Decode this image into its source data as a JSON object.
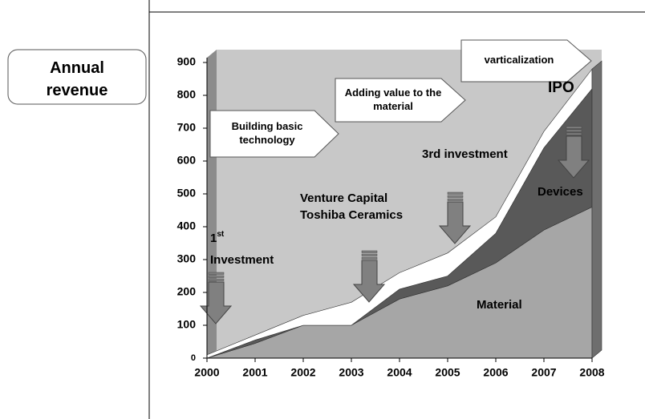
{
  "chart_data": {
    "type": "stacked_area",
    "label": "Annual revenue",
    "categories": [
      "2000",
      "2001",
      "2002",
      "2003",
      "2004",
      "2005",
      "2006",
      "2007",
      "2008"
    ],
    "series": [
      {
        "name": "Material",
        "color": "#a6a6a6",
        "values": [
          0,
          45,
          100,
          100,
          180,
          220,
          290,
          390,
          460
        ]
      },
      {
        "name": "Devices",
        "color": "#595959",
        "values": [
          0,
          10,
          0,
          0,
          30,
          30,
          90,
          250,
          360
        ]
      },
      {
        "color": "#ffffff",
        "values": [
          10,
          15,
          30,
          70,
          50,
          70,
          50,
          50,
          60
        ]
      }
    ],
    "ylim": [
      0,
      900
    ],
    "yticks": [
      0,
      100,
      200,
      300,
      400,
      500,
      600,
      700,
      800,
      900
    ],
    "phases": [
      "Building basic technology",
      "Adding value to the material",
      "varticalization"
    ],
    "annotations": {
      "first": {
        "number": "1",
        "suffix": "st",
        "text": "Investment"
      },
      "vc": [
        "Venture Capital",
        "Toshiba Ceramics"
      ],
      "third": "3rd investment",
      "ipo": "IPO"
    }
  }
}
